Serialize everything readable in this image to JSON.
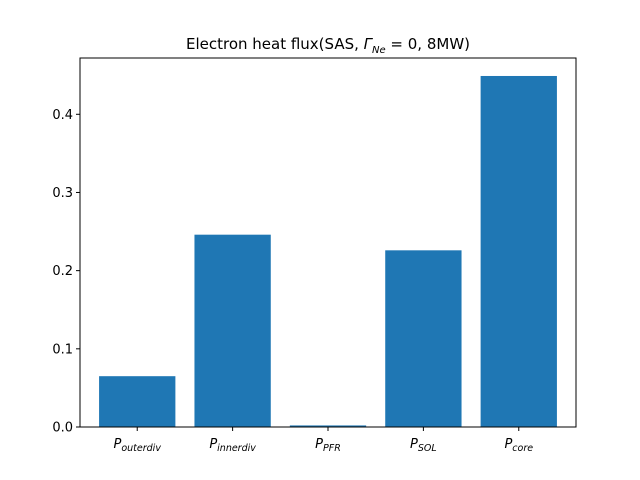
{
  "chart_data": {
    "type": "bar",
    "title": {
      "prefix": "Electron heat flux(SAS, ",
      "symbol": "Γ",
      "symbol_sub": "Ne",
      "suffix": " = 0, 8MW)"
    },
    "categories": [
      {
        "main": "P",
        "sub": "outerdiv"
      },
      {
        "main": "P",
        "sub": "innerdiv"
      },
      {
        "main": "P",
        "sub": "PFR"
      },
      {
        "main": "P",
        "sub": "SOL"
      },
      {
        "main": "P",
        "sub": "core"
      }
    ],
    "values": [
      0.065,
      0.246,
      0.002,
      0.226,
      0.449
    ],
    "ylim": [
      0,
      0.472
    ],
    "yticks": [
      0.0,
      0.1,
      0.2,
      0.3,
      0.4
    ],
    "ytick_labels": [
      "0.0",
      "0.1",
      "0.2",
      "0.3",
      "0.4"
    ],
    "xlabel": "",
    "ylabel": "",
    "grid": false,
    "bar_color": "#1f77b4"
  }
}
